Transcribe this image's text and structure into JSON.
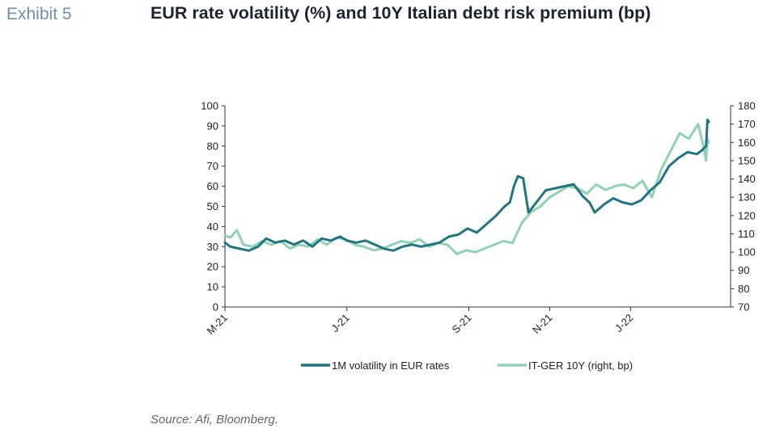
{
  "header": {
    "exhibit": "Exhibit 5",
    "title": "EUR rate volatility (%) and 10Y Italian debt risk premium (bp)"
  },
  "footer": {
    "source": "Source: Afi, Bloomberg."
  },
  "colors": {
    "vol": "#1f7582",
    "spread": "#8fd3b3"
  },
  "chart_data": {
    "type": "line",
    "title": "EUR rate volatility (%) and 10Y Italian debt risk premium (bp)",
    "x_range": [
      "2021-03-01",
      "2022-03-01"
    ],
    "x_ticks": [
      {
        "label": "M-21",
        "date": "2021-03-01"
      },
      {
        "label": "J-21",
        "date": "2021-06-01"
      },
      {
        "label": "S-21",
        "date": "2021-09-01"
      },
      {
        "label": "N-21",
        "date": "2021-11-01"
      },
      {
        "label": "J-22",
        "date": "2022-01-01"
      }
    ],
    "y_left": {
      "min": 0,
      "max": 100,
      "ticks": [
        "0",
        "10",
        "20",
        "30",
        "40",
        "50",
        "60",
        "70",
        "80",
        "90",
        "100"
      ]
    },
    "y_right": {
      "min": 70,
      "max": 180,
      "ticks": [
        "70",
        "80",
        "90",
        "100",
        "110",
        "120",
        "130",
        "140",
        "150",
        "160",
        "170",
        "180"
      ]
    },
    "grid": false,
    "legend_position": "bottom",
    "series": [
      {
        "name": "1M volatility in EUR rates",
        "axis": "left",
        "points": [
          [
            "2021-03-01",
            32
          ],
          [
            "2021-03-05",
            30
          ],
          [
            "2021-03-12",
            29
          ],
          [
            "2021-03-19",
            28
          ],
          [
            "2021-03-26",
            30
          ],
          [
            "2021-04-01",
            34
          ],
          [
            "2021-04-08",
            32
          ],
          [
            "2021-04-15",
            33
          ],
          [
            "2021-04-22",
            31
          ],
          [
            "2021-04-29",
            33
          ],
          [
            "2021-05-06",
            30
          ],
          [
            "2021-05-13",
            34
          ],
          [
            "2021-05-20",
            33
          ],
          [
            "2021-05-27",
            35
          ],
          [
            "2021-06-01",
            33
          ],
          [
            "2021-06-08",
            32
          ],
          [
            "2021-06-15",
            33
          ],
          [
            "2021-06-22",
            31
          ],
          [
            "2021-06-29",
            29
          ],
          [
            "2021-07-06",
            28
          ],
          [
            "2021-07-13",
            30
          ],
          [
            "2021-07-20",
            31
          ],
          [
            "2021-07-27",
            30
          ],
          [
            "2021-08-03",
            31
          ],
          [
            "2021-08-10",
            32
          ],
          [
            "2021-08-17",
            35
          ],
          [
            "2021-08-24",
            36
          ],
          [
            "2021-08-31",
            39
          ],
          [
            "2021-09-07",
            37
          ],
          [
            "2021-09-14",
            41
          ],
          [
            "2021-09-21",
            45
          ],
          [
            "2021-09-28",
            50
          ],
          [
            "2021-10-02",
            52
          ],
          [
            "2021-10-05",
            60
          ],
          [
            "2021-10-08",
            65
          ],
          [
            "2021-10-12",
            64
          ],
          [
            "2021-10-16",
            47
          ],
          [
            "2021-10-22",
            52
          ],
          [
            "2021-10-29",
            58
          ],
          [
            "2021-11-05",
            59
          ],
          [
            "2021-11-12",
            60
          ],
          [
            "2021-11-19",
            61
          ],
          [
            "2021-11-26",
            55
          ],
          [
            "2021-12-01",
            52
          ],
          [
            "2021-12-05",
            47
          ],
          [
            "2021-12-12",
            51
          ],
          [
            "2021-12-19",
            54
          ],
          [
            "2021-12-26",
            52
          ],
          [
            "2022-01-02",
            51
          ],
          [
            "2022-01-09",
            53
          ],
          [
            "2022-01-16",
            58
          ],
          [
            "2022-01-23",
            62
          ],
          [
            "2022-01-30",
            70
          ],
          [
            "2022-02-06",
            74
          ],
          [
            "2022-02-13",
            77
          ],
          [
            "2022-02-20",
            76
          ],
          [
            "2022-02-24",
            78
          ],
          [
            "2022-02-27",
            80
          ],
          [
            "2022-02-28",
            93
          ],
          [
            "2022-03-01",
            92
          ]
        ]
      },
      {
        "name": "IT-GER 10Y (right, bp)",
        "axis": "right",
        "points": [
          [
            "2021-03-01",
            109
          ],
          [
            "2021-03-05",
            108
          ],
          [
            "2021-03-10",
            112
          ],
          [
            "2021-03-15",
            104
          ],
          [
            "2021-03-22",
            103
          ],
          [
            "2021-03-29",
            106
          ],
          [
            "2021-04-05",
            104
          ],
          [
            "2021-04-12",
            106
          ],
          [
            "2021-04-19",
            102
          ],
          [
            "2021-04-26",
            104
          ],
          [
            "2021-05-03",
            103
          ],
          [
            "2021-05-10",
            107
          ],
          [
            "2021-05-17",
            104
          ],
          [
            "2021-05-24",
            108
          ],
          [
            "2021-05-31",
            107
          ],
          [
            "2021-06-07",
            104
          ],
          [
            "2021-06-14",
            103
          ],
          [
            "2021-06-21",
            101
          ],
          [
            "2021-06-28",
            102
          ],
          [
            "2021-07-05",
            104
          ],
          [
            "2021-07-12",
            106
          ],
          [
            "2021-07-19",
            105
          ],
          [
            "2021-07-26",
            107
          ],
          [
            "2021-08-02",
            103
          ],
          [
            "2021-08-09",
            105
          ],
          [
            "2021-08-16",
            104
          ],
          [
            "2021-08-23",
            99
          ],
          [
            "2021-08-30",
            101
          ],
          [
            "2021-09-06",
            100
          ],
          [
            "2021-09-13",
            102
          ],
          [
            "2021-09-20",
            104
          ],
          [
            "2021-09-27",
            106
          ],
          [
            "2021-10-04",
            105
          ],
          [
            "2021-10-11",
            116
          ],
          [
            "2021-10-18",
            122
          ],
          [
            "2021-10-25",
            125
          ],
          [
            "2021-11-01",
            130
          ],
          [
            "2021-11-08",
            133
          ],
          [
            "2021-11-15",
            136
          ],
          [
            "2021-11-22",
            135
          ],
          [
            "2021-11-29",
            132
          ],
          [
            "2021-12-06",
            137
          ],
          [
            "2021-12-13",
            134
          ],
          [
            "2021-12-20",
            136
          ],
          [
            "2021-12-27",
            137
          ],
          [
            "2022-01-03",
            135
          ],
          [
            "2022-01-10",
            139
          ],
          [
            "2022-01-17",
            130
          ],
          [
            "2022-01-24",
            145
          ],
          [
            "2022-01-31",
            155
          ],
          [
            "2022-02-07",
            165
          ],
          [
            "2022-02-14",
            162
          ],
          [
            "2022-02-21",
            170
          ],
          [
            "2022-02-25",
            158
          ],
          [
            "2022-02-27",
            150
          ],
          [
            "2022-02-28",
            162
          ],
          [
            "2022-03-01",
            160
          ]
        ]
      }
    ]
  }
}
